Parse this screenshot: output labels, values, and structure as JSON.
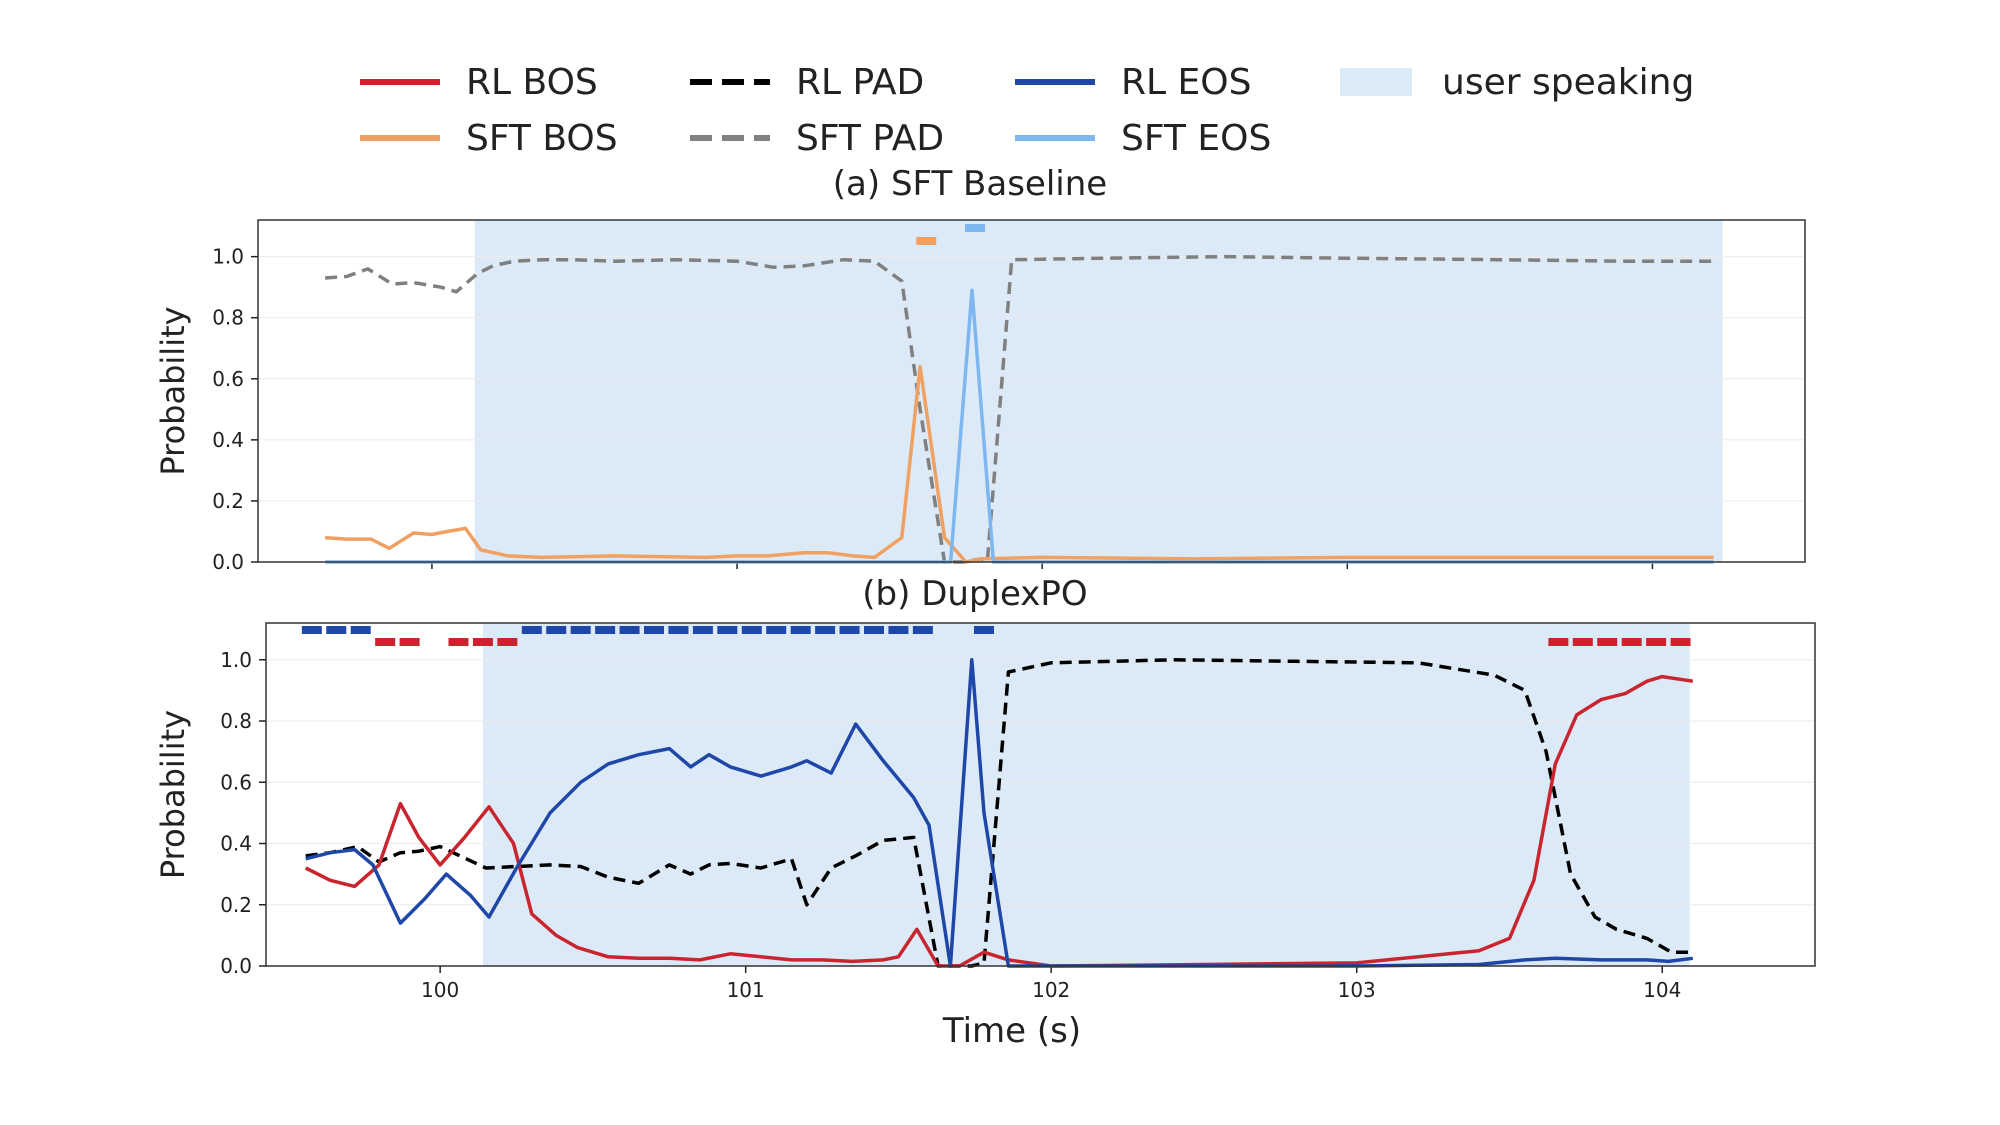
{
  "legend": {
    "items": [
      {
        "label": "RL BOS",
        "color": "#c9252e",
        "style": "solid"
      },
      {
        "label": "RL PAD",
        "color": "#000000",
        "style": "dashed"
      },
      {
        "label": "RL EOS",
        "color": "#1f47a8",
        "style": "solid"
      },
      {
        "label": "user speaking",
        "color": "#dceaf8",
        "style": "patch"
      },
      {
        "label": "SFT BOS",
        "color": "#f0a060",
        "style": "solid"
      },
      {
        "label": "SFT PAD",
        "color": "#808080",
        "style": "dashed"
      },
      {
        "label": "SFT EOS",
        "color": "#7db6f0",
        "style": "solid"
      }
    ]
  },
  "chart_data": [
    {
      "type": "line",
      "title": "(a) SFT Baseline",
      "xlabel": "",
      "ylabel": "Probability",
      "xlim": [
        99.43,
        104.5
      ],
      "ylim": [
        0,
        1.12
      ],
      "yticks": [
        "0.0",
        "0.2",
        "0.4",
        "0.6",
        "0.8",
        "1.0"
      ],
      "xticks": [
        100,
        101,
        102,
        103,
        104
      ],
      "xtick_labels_visible": false,
      "speaking_span": [
        100.14,
        104.23
      ],
      "series": [
        {
          "name": "SFT PAD",
          "color": "#808080",
          "dash": true,
          "x": [
            99.65,
            99.72,
            99.79,
            99.87,
            99.94,
            100.03,
            100.08,
            100.15,
            100.2,
            100.27,
            100.36,
            100.46,
            100.6,
            100.8,
            101.0,
            101.12,
            101.22,
            101.35,
            101.45,
            101.54,
            101.6,
            101.68,
            101.74,
            101.8,
            101.82,
            101.9,
            102.2,
            102.6,
            103.0,
            103.5,
            103.9,
            104.2
          ],
          "y": [
            0.93,
            0.935,
            0.96,
            0.91,
            0.915,
            0.9,
            0.885,
            0.945,
            0.97,
            0.985,
            0.99,
            0.99,
            0.985,
            0.99,
            0.985,
            0.965,
            0.97,
            0.99,
            0.985,
            0.92,
            0.5,
            0.0,
            0.0,
            0.01,
            0.0,
            0.99,
            0.995,
            1.0,
            0.995,
            0.99,
            0.985,
            0.985
          ]
        },
        {
          "name": "SFT BOS",
          "color": "#f0a060",
          "dash": false,
          "x": [
            99.65,
            99.72,
            99.8,
            99.86,
            99.94,
            100.0,
            100.05,
            100.11,
            100.16,
            100.25,
            100.36,
            100.6,
            100.9,
            101.0,
            101.1,
            101.22,
            101.3,
            101.38,
            101.45,
            101.54,
            101.6,
            101.68,
            101.75,
            101.8,
            102.0,
            102.5,
            103.0,
            103.5,
            104.0,
            104.2
          ],
          "y": [
            0.08,
            0.075,
            0.075,
            0.045,
            0.095,
            0.09,
            0.1,
            0.11,
            0.04,
            0.02,
            0.015,
            0.02,
            0.015,
            0.02,
            0.02,
            0.03,
            0.03,
            0.02,
            0.015,
            0.08,
            0.64,
            0.08,
            0.0,
            0.01,
            0.015,
            0.01,
            0.015,
            0.015,
            0.015,
            0.015
          ]
        },
        {
          "name": "SFT EOS",
          "color": "#7db6f0",
          "dash": false,
          "x": [
            99.65,
            101.55,
            101.65,
            101.7,
            101.77,
            101.84,
            101.9,
            102.5,
            103.0,
            103.5,
            104.2
          ],
          "y": [
            0.0,
            0.0,
            0.0,
            0.0,
            0.89,
            0.0,
            0.0,
            0.0,
            0.0,
            0.0,
            0.0
          ]
        }
      ],
      "markers": [
        {
          "series": "SFT BOS",
          "color": "#f0a060",
          "x": [
            101.62
          ]
        },
        {
          "series": "SFT EOS",
          "color": "#7db6f0",
          "x": [
            101.78
          ]
        }
      ]
    },
    {
      "type": "line",
      "title": "(b) DuplexPO",
      "xlabel": "Time (s)",
      "ylabel": "Probability",
      "xlim": [
        99.43,
        104.5
      ],
      "ylim": [
        0,
        1.12
      ],
      "yticks": [
        "0.0",
        "0.2",
        "0.4",
        "0.6",
        "0.8",
        "1.0"
      ],
      "xticks": [
        100,
        101,
        102,
        103,
        104
      ],
      "xtick_labels_visible": true,
      "speaking_span": [
        100.14,
        104.09
      ],
      "series": [
        {
          "name": "RL PAD",
          "color": "#000000",
          "dash": true,
          "x": [
            99.56,
            99.64,
            99.73,
            99.8,
            99.87,
            99.93,
            100.0,
            100.15,
            100.36,
            100.46,
            100.55,
            100.65,
            100.75,
            100.82,
            100.88,
            100.95,
            101.05,
            101.15,
            101.2,
            101.28,
            101.36,
            101.45,
            101.55,
            101.63,
            101.7,
            101.74,
            101.78,
            101.86,
            102.0,
            102.4,
            102.8,
            103.2,
            103.45,
            103.55,
            103.62,
            103.7,
            103.78,
            103.85,
            103.95,
            104.03,
            104.1
          ],
          "y": [
            0.36,
            0.37,
            0.39,
            0.34,
            0.37,
            0.375,
            0.39,
            0.32,
            0.33,
            0.325,
            0.29,
            0.27,
            0.33,
            0.3,
            0.33,
            0.335,
            0.32,
            0.35,
            0.2,
            0.32,
            0.36,
            0.41,
            0.42,
            0.0,
            0.0,
            0.0,
            0.01,
            0.96,
            0.99,
            1.0,
            0.995,
            0.99,
            0.95,
            0.9,
            0.7,
            0.3,
            0.16,
            0.12,
            0.09,
            0.045,
            0.045
          ]
        },
        {
          "name": "RL BOS",
          "color": "#c9252e",
          "dash": false,
          "x": [
            99.56,
            99.64,
            99.72,
            99.8,
            99.87,
            99.93,
            100.0,
            100.08,
            100.16,
            100.24,
            100.3,
            100.38,
            100.45,
            100.55,
            100.65,
            100.75,
            100.85,
            100.95,
            101.05,
            101.15,
            101.25,
            101.35,
            101.45,
            101.5,
            101.56,
            101.63,
            101.7,
            101.78,
            101.86,
            102.0,
            102.5,
            103.0,
            103.4,
            103.5,
            103.58,
            103.65,
            103.72,
            103.8,
            103.88,
            103.95,
            104.0,
            104.1
          ],
          "y": [
            0.32,
            0.28,
            0.26,
            0.33,
            0.53,
            0.42,
            0.33,
            0.42,
            0.52,
            0.4,
            0.17,
            0.1,
            0.06,
            0.03,
            0.025,
            0.025,
            0.02,
            0.04,
            0.03,
            0.02,
            0.02,
            0.015,
            0.02,
            0.03,
            0.12,
            0.0,
            0.0,
            0.045,
            0.02,
            0.0,
            0.005,
            0.01,
            0.05,
            0.09,
            0.28,
            0.66,
            0.82,
            0.87,
            0.89,
            0.93,
            0.945,
            0.93
          ]
        },
        {
          "name": "RL EOS",
          "color": "#1f47a8",
          "dash": false,
          "x": [
            99.56,
            99.64,
            99.72,
            99.78,
            99.87,
            99.95,
            100.02,
            100.1,
            100.16,
            100.25,
            100.36,
            100.46,
            100.55,
            100.65,
            100.75,
            100.82,
            100.88,
            100.95,
            101.05,
            101.15,
            101.2,
            101.28,
            101.36,
            101.45,
            101.55,
            101.6,
            101.67,
            101.74,
            101.78,
            101.86,
            102.0,
            102.5,
            103.0,
            103.4,
            103.55,
            103.65,
            103.8,
            103.95,
            104.02,
            104.1
          ],
          "y": [
            0.35,
            0.37,
            0.38,
            0.33,
            0.14,
            0.22,
            0.3,
            0.23,
            0.16,
            0.32,
            0.5,
            0.6,
            0.66,
            0.69,
            0.71,
            0.65,
            0.69,
            0.65,
            0.62,
            0.65,
            0.67,
            0.63,
            0.79,
            0.67,
            0.55,
            0.46,
            0.0,
            1.0,
            0.5,
            0.0,
            0.0,
            0.0,
            0.0,
            0.005,
            0.02,
            0.025,
            0.02,
            0.02,
            0.015,
            0.025
          ]
        }
      ],
      "markers": [
        {
          "series": "RL EOS",
          "color": "#1f47a8",
          "x": [
            99.58,
            99.66,
            99.74,
            100.3,
            100.38,
            100.46,
            100.54,
            100.62,
            100.7,
            100.78,
            100.86,
            100.94,
            101.02,
            101.1,
            101.18,
            101.26,
            101.34,
            101.42,
            101.5,
            101.58,
            101.78
          ]
        },
        {
          "series": "RL BOS",
          "color": "#c9252e",
          "x": [
            99.82,
            99.9,
            100.06,
            100.14,
            100.22,
            103.66,
            103.74,
            103.82,
            103.9,
            103.98,
            104.06
          ]
        }
      ]
    }
  ]
}
